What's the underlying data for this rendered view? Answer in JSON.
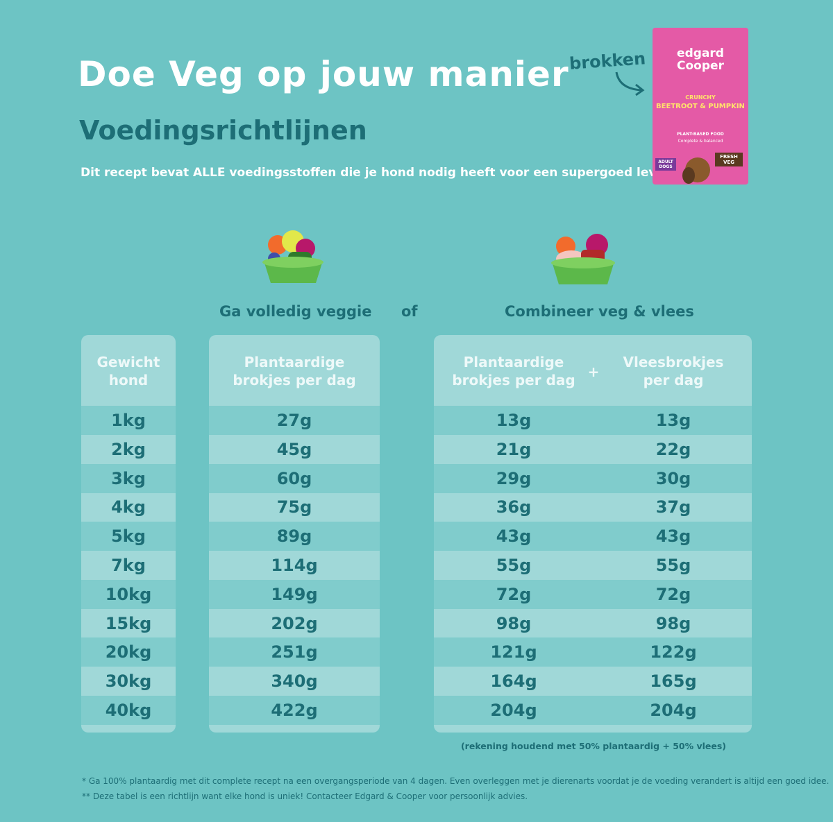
{
  "header": {
    "title": "Doe Veg op jouw manier",
    "subtitle": "Voedingsrichtlijnen",
    "intro": "Dit recept bevat ALLE voedingsstoffen die je hond nodig heeft voor een supergoed leven",
    "arrow_label": "brokken"
  },
  "package": {
    "brand": "edgard Cooper",
    "flavor_prefix": "CRUNCHY",
    "flavor": "BEETROOT & PUMPKIN",
    "claim": "PLANT-BASED FOOD",
    "claim_sub": "Complete & balanced",
    "badge": "FRESH VEG",
    "target": "ADULT DOGS"
  },
  "options": {
    "veggie": "Ga volledig veggie",
    "or": "of",
    "combined": "Combineer veg & vlees"
  },
  "table": {
    "headers": [
      "Gewicht hond",
      "Plantaardige brokjes per dag",
      "Plantaardige brokjes per dag",
      "Vleesbrokjes per dag"
    ],
    "plus": "+",
    "rows": [
      [
        "1kg",
        "27g",
        "13g",
        "13g"
      ],
      [
        "2kg",
        "45g",
        "21g",
        "22g"
      ],
      [
        "3kg",
        "60g",
        "29g",
        "30g"
      ],
      [
        "4kg",
        "75g",
        "36g",
        "37g"
      ],
      [
        "5kg",
        "89g",
        "43g",
        "43g"
      ],
      [
        "7kg",
        "114g",
        "55g",
        "55g"
      ],
      [
        "10kg",
        "149g",
        "72g",
        "72g"
      ],
      [
        "15kg",
        "202g",
        "98g",
        "98g"
      ],
      [
        "20kg",
        "251g",
        "121g",
        "122g"
      ],
      [
        "30kg",
        "340g",
        "164g",
        "165g"
      ],
      [
        "40kg",
        "422g",
        "204g",
        "204g"
      ]
    ]
  },
  "note": "(rekening houdend met 50% plantaardig + 50% vlees)",
  "footnotes": [
    "* Ga 100% plantaardig met dit complete recept na een overgangsperiode van 4 dagen. Even overleggen met je dierenarts voordat je de voeding verandert is altijd een goed idee.",
    "** Deze tabel is een richtlijn want elke hond is uniek! Contacteer Edgard & Cooper voor persoonlijk advies."
  ]
}
